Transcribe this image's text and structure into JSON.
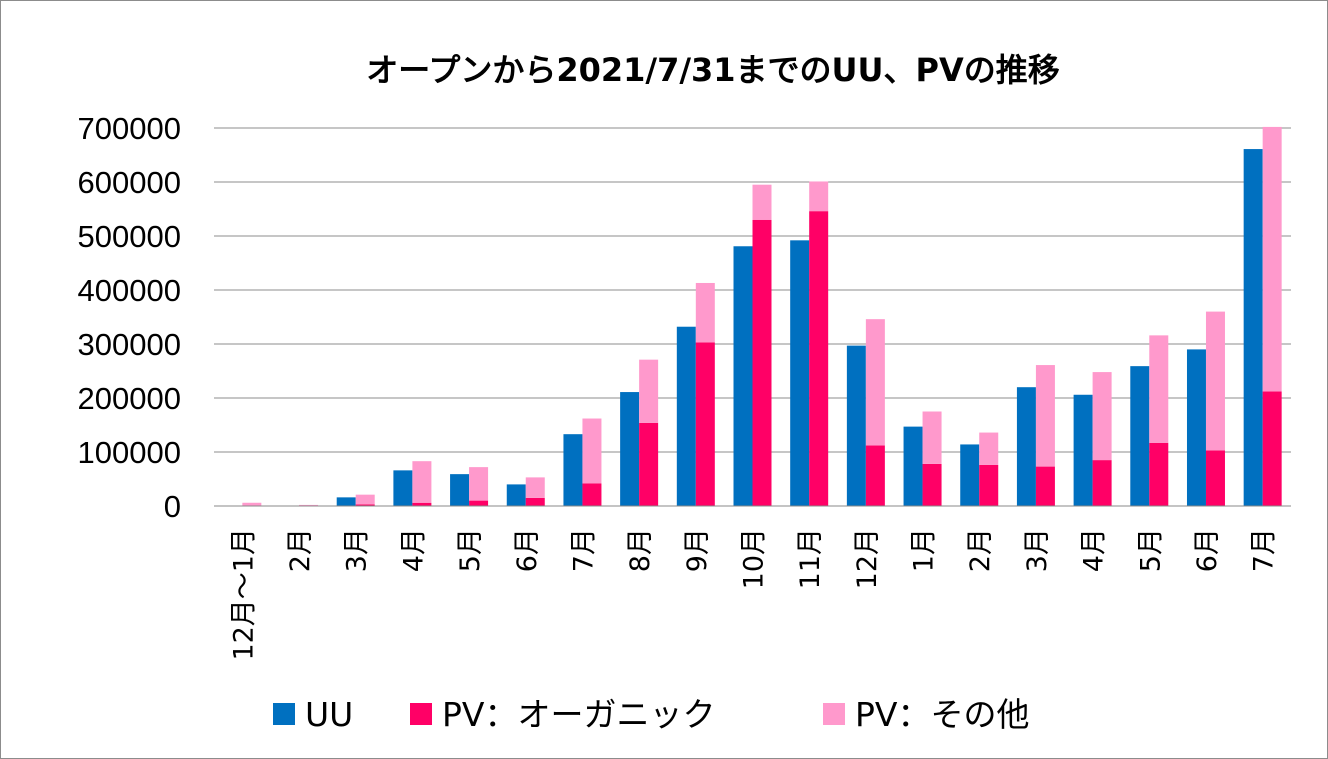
{
  "chart_data": {
    "type": "bar",
    "title": "オープンから2021/7/31までのUU、PVの推移",
    "xlabel": "",
    "ylabel": "",
    "ylim": [
      0,
      700000
    ],
    "yticks": [
      0,
      100000,
      200000,
      300000,
      400000,
      500000,
      600000,
      700000
    ],
    "grid": true,
    "legend_position": "bottom",
    "categories": [
      "12月～1月",
      "2月",
      "3月",
      "4月",
      "5月",
      "6月",
      "7月",
      "8月",
      "9月",
      "10月",
      "11月",
      "12月",
      "1月",
      "2月",
      "3月",
      "4月",
      "5月",
      "6月",
      "7月"
    ],
    "series": [
      {
        "name": "UU",
        "color": "#0070c0",
        "stack": "uu",
        "values": [
          0,
          0,
          16000,
          66000,
          59000,
          40000,
          133000,
          211000,
          332000,
          481000,
          492000,
          297000,
          147000,
          114000,
          220000,
          206000,
          259000,
          290000,
          661000
        ]
      },
      {
        "name": "PV：オーガニック",
        "color": "#ff0066",
        "stack": "pv",
        "values": [
          0,
          0,
          3000,
          6000,
          10000,
          15000,
          42000,
          154000,
          303000,
          530000,
          546000,
          112000,
          78000,
          76000,
          73000,
          85000,
          117000,
          103000,
          212000
        ]
      },
      {
        "name": "PV：その他",
        "color": "#ff99cc",
        "stack": "pv",
        "values": [
          6000,
          2000,
          18000,
          77000,
          62000,
          38000,
          120000,
          117000,
          110000,
          65000,
          55000,
          234000,
          97000,
          60000,
          188000,
          163000,
          199000,
          257000,
          490000
        ]
      }
    ]
  }
}
